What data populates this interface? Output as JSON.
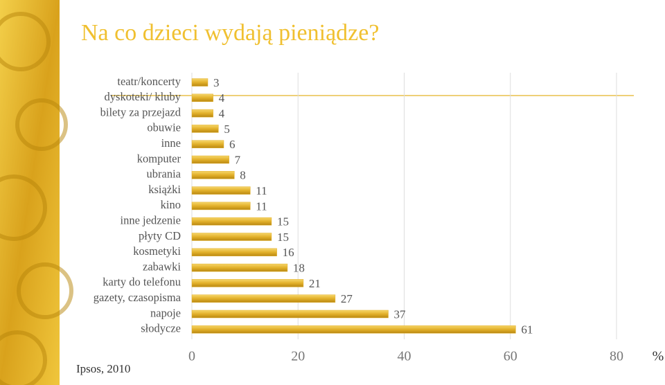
{
  "chart_data": {
    "type": "bar",
    "orientation": "horizontal",
    "title": "Na co dzieci wydają pieniądze?",
    "categories": [
      "teatr/koncerty",
      "dyskoteki/ kluby",
      "bilety za przejazd",
      "obuwie",
      "inne",
      "komputer",
      "ubrania",
      "książki",
      "kino",
      "inne jedzenie",
      "płyty CD",
      "kosmetyki",
      "zabawki",
      "karty do telefonu",
      "gazety, czasopisma",
      "napoje",
      "słodycze"
    ],
    "values": [
      3,
      4,
      4,
      5,
      6,
      7,
      8,
      11,
      11,
      15,
      15,
      16,
      18,
      21,
      27,
      37,
      61
    ],
    "color": "#e2b02a",
    "xlim": [
      0,
      80
    ],
    "xticks": [
      0,
      20,
      40,
      60,
      80
    ],
    "x_label": "%",
    "grid": true,
    "source": "Ipsos, 2010"
  }
}
